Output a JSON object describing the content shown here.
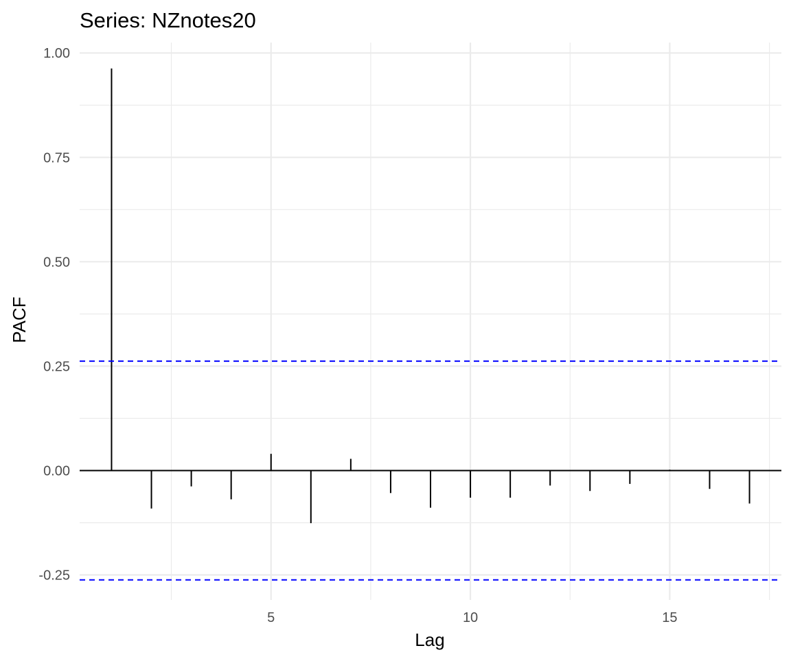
{
  "chart_data": {
    "type": "bar",
    "title": "Series: NZnotes20",
    "xlabel": "Lag",
    "ylabel": "PACF",
    "xlim": [
      0.2,
      17.8
    ],
    "ylim": [
      -0.31,
      1.025
    ],
    "x_ticks": [
      5,
      10,
      15
    ],
    "x_tick_labels": [
      "5",
      "10",
      "15"
    ],
    "y_ticks": [
      -0.25,
      0,
      0.25,
      0.5,
      0.75,
      1
    ],
    "y_tick_labels": [
      "-0.25",
      "0.00",
      "0.25",
      "0.50",
      "0.75",
      "1.00"
    ],
    "grid": true,
    "lags": [
      1,
      2,
      3,
      4,
      5,
      6,
      7,
      8,
      9,
      10,
      11,
      12,
      13,
      14,
      15,
      16,
      17
    ],
    "values": [
      0.963,
      -0.091,
      -0.038,
      -0.069,
      0.04,
      -0.126,
      0.028,
      -0.054,
      -0.089,
      -0.065,
      -0.065,
      -0.036,
      -0.049,
      -0.032,
      0.002,
      -0.044,
      -0.079
    ],
    "confidence_limits": [
      0.262,
      -0.262
    ],
    "colors": {
      "bars": "#000000",
      "confidence_lines": "#0000ff",
      "grid": "#ebebeb",
      "tick_text": "#4d4d4d"
    }
  }
}
